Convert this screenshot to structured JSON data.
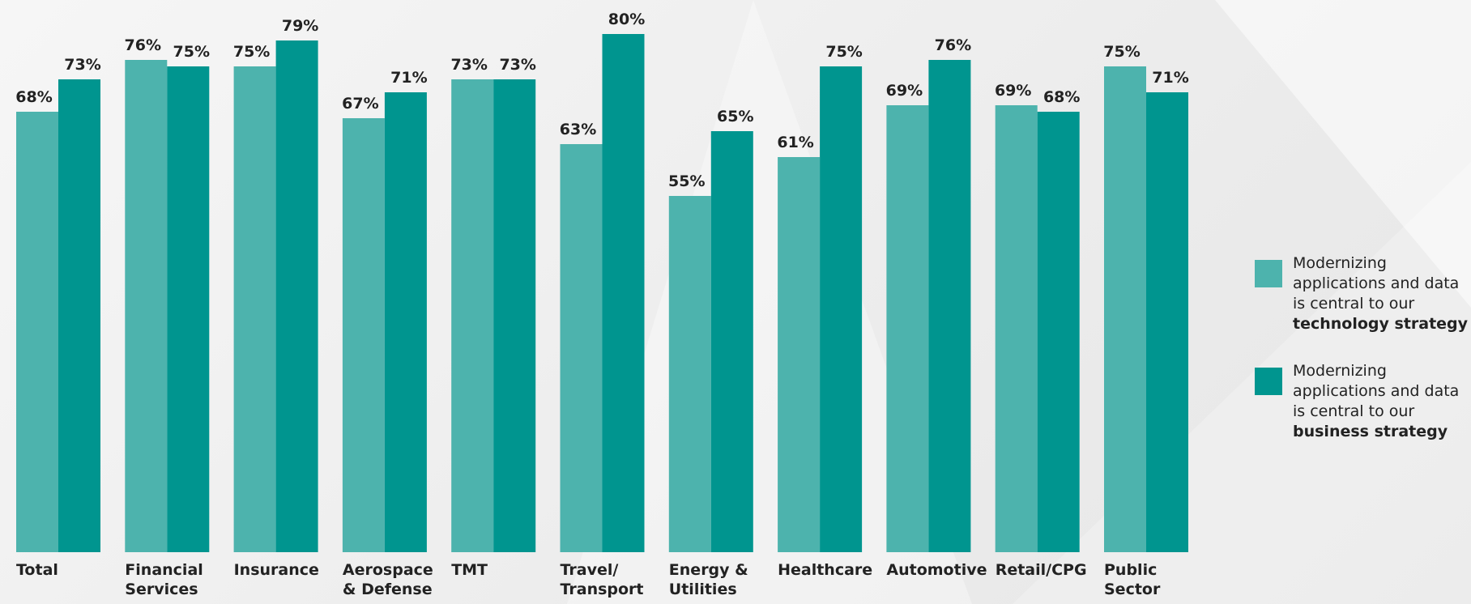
{
  "chart_data": {
    "type": "bar",
    "categories": [
      "Total",
      "Financial Services",
      "Insurance",
      "Aerospace & Defense",
      "TMT",
      "Travel/ Transport",
      "Energy & Utilities",
      "Healthcare",
      "Automotive",
      "Retail/CPG",
      "Public Sector"
    ],
    "series": [
      {
        "name": "Modernizing applications and data is central to our technology strategy",
        "color": "#4db3ad",
        "values": [
          68,
          76,
          75,
          67,
          73,
          63,
          55,
          61,
          69,
          69,
          75
        ],
        "value_labels": [
          "68%",
          "76%",
          "75%",
          "67%",
          "73%",
          "63%",
          "55%",
          "61%",
          "69%",
          "69%",
          "75%"
        ]
      },
      {
        "name": "Modernizing applications and data is central to our business strategy",
        "color": "#00958f",
        "values": [
          73,
          75,
          79,
          71,
          73,
          80,
          65,
          75,
          76,
          68,
          71
        ],
        "value_labels": [
          "73%",
          "75%",
          "79%",
          "71%",
          "73%",
          "80%",
          "65%",
          "75%",
          "76%",
          "68%",
          "71%"
        ]
      }
    ],
    "legend": "right"
  }
}
